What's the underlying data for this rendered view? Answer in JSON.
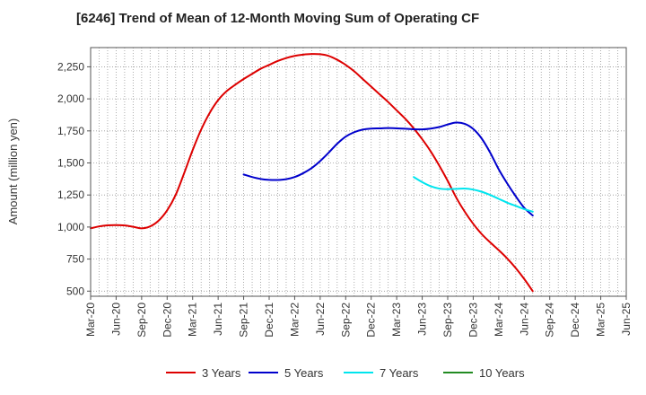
{
  "chart_data": {
    "type": "line",
    "title": "[6246]  Trend of Mean of 12-Month Moving Sum of Operating CF",
    "xlabel": "",
    "ylabel": "Amount (million yen)",
    "ylim": [
      460,
      2400
    ],
    "y_ticks": [
      500,
      750,
      1000,
      1250,
      1500,
      1750,
      2000,
      2250
    ],
    "y_tick_labels": [
      "500",
      "750",
      "1,000",
      "1,250",
      "1,500",
      "1,750",
      "2,000",
      "2,250"
    ],
    "x_tick_labels": [
      "Mar-20",
      "Jun-20",
      "Sep-20",
      "Dec-20",
      "Mar-21",
      "Jun-21",
      "Sep-21",
      "Dec-21",
      "Mar-22",
      "Jun-22",
      "Sep-22",
      "Dec-22",
      "Mar-23",
      "Jun-23",
      "Sep-23",
      "Dec-23",
      "Mar-24",
      "Jun-24",
      "Sep-24",
      "Dec-24",
      "Mar-25",
      "Jun-25"
    ],
    "x_range_months": [
      0,
      63
    ],
    "grid": true,
    "legend_position": "bottom",
    "series": [
      {
        "name": "3 Years",
        "color": "#dd0000",
        "points": [
          [
            0,
            990
          ],
          [
            1,
            1005
          ],
          [
            2,
            1013
          ],
          [
            3,
            1015
          ],
          [
            4,
            1012
          ],
          [
            5,
            1002
          ],
          [
            6,
            990
          ],
          [
            7,
            1005
          ],
          [
            8,
            1050
          ],
          [
            9,
            1130
          ],
          [
            10,
            1250
          ],
          [
            11,
            1420
          ],
          [
            12,
            1600
          ],
          [
            13,
            1760
          ],
          [
            14,
            1890
          ],
          [
            15,
            1990
          ],
          [
            16,
            2060
          ],
          [
            17,
            2110
          ],
          [
            18,
            2155
          ],
          [
            19,
            2195
          ],
          [
            20,
            2235
          ],
          [
            21,
            2265
          ],
          [
            22,
            2295
          ],
          [
            23,
            2318
          ],
          [
            24,
            2335
          ],
          [
            25,
            2345
          ],
          [
            26,
            2350
          ],
          [
            27,
            2348
          ],
          [
            28,
            2335
          ],
          [
            29,
            2305
          ],
          [
            30,
            2265
          ],
          [
            31,
            2215
          ],
          [
            32,
            2155
          ],
          [
            33,
            2095
          ],
          [
            34,
            2035
          ],
          [
            35,
            1975
          ],
          [
            36,
            1910
          ],
          [
            37,
            1845
          ],
          [
            38,
            1770
          ],
          [
            39,
            1685
          ],
          [
            40,
            1590
          ],
          [
            41,
            1480
          ],
          [
            42,
            1360
          ],
          [
            43,
            1230
          ],
          [
            44,
            1120
          ],
          [
            45,
            1025
          ],
          [
            46,
            945
          ],
          [
            47,
            880
          ],
          [
            48,
            820
          ],
          [
            49,
            755
          ],
          [
            50,
            680
          ],
          [
            51,
            595
          ],
          [
            52,
            500
          ]
        ]
      },
      {
        "name": "5 Years",
        "color": "#0000cc",
        "points": [
          [
            18,
            1410
          ],
          [
            19,
            1390
          ],
          [
            20,
            1375
          ],
          [
            21,
            1368
          ],
          [
            22,
            1367
          ],
          [
            23,
            1373
          ],
          [
            24,
            1390
          ],
          [
            25,
            1420
          ],
          [
            26,
            1460
          ],
          [
            27,
            1515
          ],
          [
            28,
            1580
          ],
          [
            29,
            1650
          ],
          [
            30,
            1705
          ],
          [
            31,
            1740
          ],
          [
            32,
            1760
          ],
          [
            33,
            1768
          ],
          [
            34,
            1770
          ],
          [
            35,
            1772
          ],
          [
            36,
            1770
          ],
          [
            37,
            1767
          ],
          [
            38,
            1763
          ],
          [
            39,
            1762
          ],
          [
            40,
            1768
          ],
          [
            41,
            1780
          ],
          [
            42,
            1800
          ],
          [
            43,
            1815
          ],
          [
            44,
            1805
          ],
          [
            45,
            1765
          ],
          [
            46,
            1690
          ],
          [
            47,
            1580
          ],
          [
            48,
            1450
          ],
          [
            49,
            1340
          ],
          [
            50,
            1240
          ],
          [
            51,
            1150
          ],
          [
            52,
            1090
          ]
        ]
      },
      {
        "name": "7 Years",
        "color": "#00e5ee",
        "points": [
          [
            38,
            1390
          ],
          [
            39,
            1350
          ],
          [
            40,
            1318
          ],
          [
            41,
            1300
          ],
          [
            42,
            1295
          ],
          [
            43,
            1298
          ],
          [
            44,
            1300
          ],
          [
            45,
            1292
          ],
          [
            46,
            1275
          ],
          [
            47,
            1250
          ],
          [
            48,
            1220
          ],
          [
            49,
            1190
          ],
          [
            50,
            1165
          ],
          [
            51,
            1140
          ],
          [
            52,
            1120
          ]
        ]
      },
      {
        "name": "10 Years",
        "color": "#228b22",
        "points": []
      }
    ]
  }
}
